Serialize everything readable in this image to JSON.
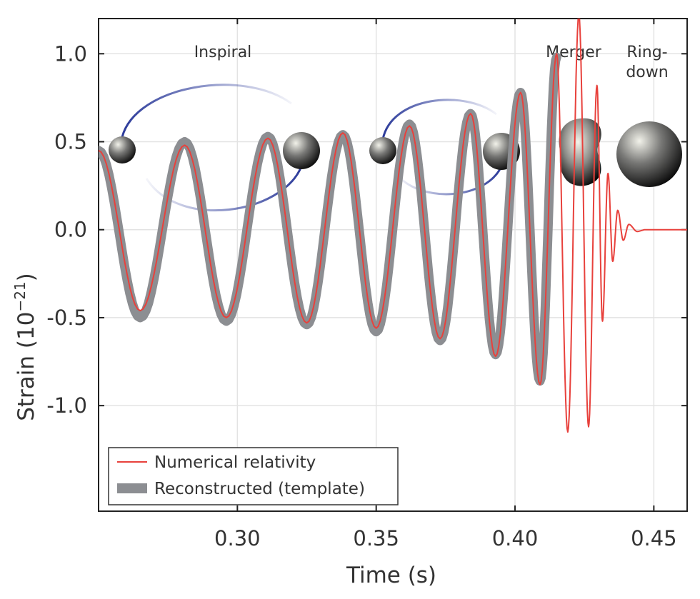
{
  "chart_data": {
    "type": "line",
    "xlabel": "Time (s)",
    "ylabel": "Strain (10",
    "ylabel_exponent": "−21",
    "ylabel_close": ")",
    "xlim": [
      0.25,
      0.462
    ],
    "ylim": [
      -1.6,
      1.2
    ],
    "x_ticks": [
      0.3,
      0.35,
      0.4,
      0.45
    ],
    "x_tick_labels": [
      "0.30",
      "0.35",
      "0.40",
      "0.45"
    ],
    "y_ticks": [
      1.0,
      0.5,
      0.0,
      -0.5,
      -1.0
    ],
    "y_tick_labels": [
      "1.0",
      "0.5",
      "0.0",
      "-0.5",
      "-1.0"
    ],
    "grid": true,
    "legend_position": "bottom-left",
    "phases": [
      "Inspiral",
      "Merger",
      "Ring-",
      "down"
    ],
    "series": [
      {
        "name": "Numerical relativity",
        "color": "#e8413c",
        "points": [
          [
            0.25,
            0.45
          ],
          [
            0.265,
            -0.46
          ],
          [
            0.281,
            0.48
          ],
          [
            0.296,
            -0.5
          ],
          [
            0.311,
            0.52
          ],
          [
            0.325,
            -0.53
          ],
          [
            0.338,
            0.55
          ],
          [
            0.35,
            -0.56
          ],
          [
            0.362,
            0.59
          ],
          [
            0.373,
            -0.62
          ],
          [
            0.384,
            0.66
          ],
          [
            0.393,
            -0.72
          ],
          [
            0.402,
            0.78
          ],
          [
            0.409,
            -0.88
          ],
          [
            0.415,
            1.0
          ],
          [
            0.419,
            -1.15
          ],
          [
            0.423,
            1.22
          ],
          [
            0.4265,
            -1.12
          ],
          [
            0.4295,
            0.82
          ],
          [
            0.4315,
            -0.52
          ],
          [
            0.4335,
            0.32
          ],
          [
            0.4352,
            -0.18
          ],
          [
            0.437,
            0.11
          ],
          [
            0.439,
            -0.06
          ],
          [
            0.441,
            0.03
          ],
          [
            0.444,
            -0.01
          ],
          [
            0.447,
            0.0
          ],
          [
            0.462,
            0.0
          ]
        ]
      },
      {
        "name": "Reconstructed (template)",
        "color": "#8c8e92",
        "points": [
          [
            0.25,
            0.45
          ],
          [
            0.265,
            -0.5
          ],
          [
            0.281,
            0.5
          ],
          [
            0.296,
            -0.52
          ],
          [
            0.311,
            0.53
          ],
          [
            0.325,
            -0.54
          ],
          [
            0.338,
            0.54
          ],
          [
            0.35,
            -0.58
          ],
          [
            0.362,
            0.6
          ],
          [
            0.373,
            -0.63
          ],
          [
            0.384,
            0.66
          ],
          [
            0.393,
            -0.71
          ],
          [
            0.402,
            0.78
          ],
          [
            0.409,
            -0.86
          ],
          [
            0.415,
            0.98
          ]
        ]
      }
    ]
  }
}
